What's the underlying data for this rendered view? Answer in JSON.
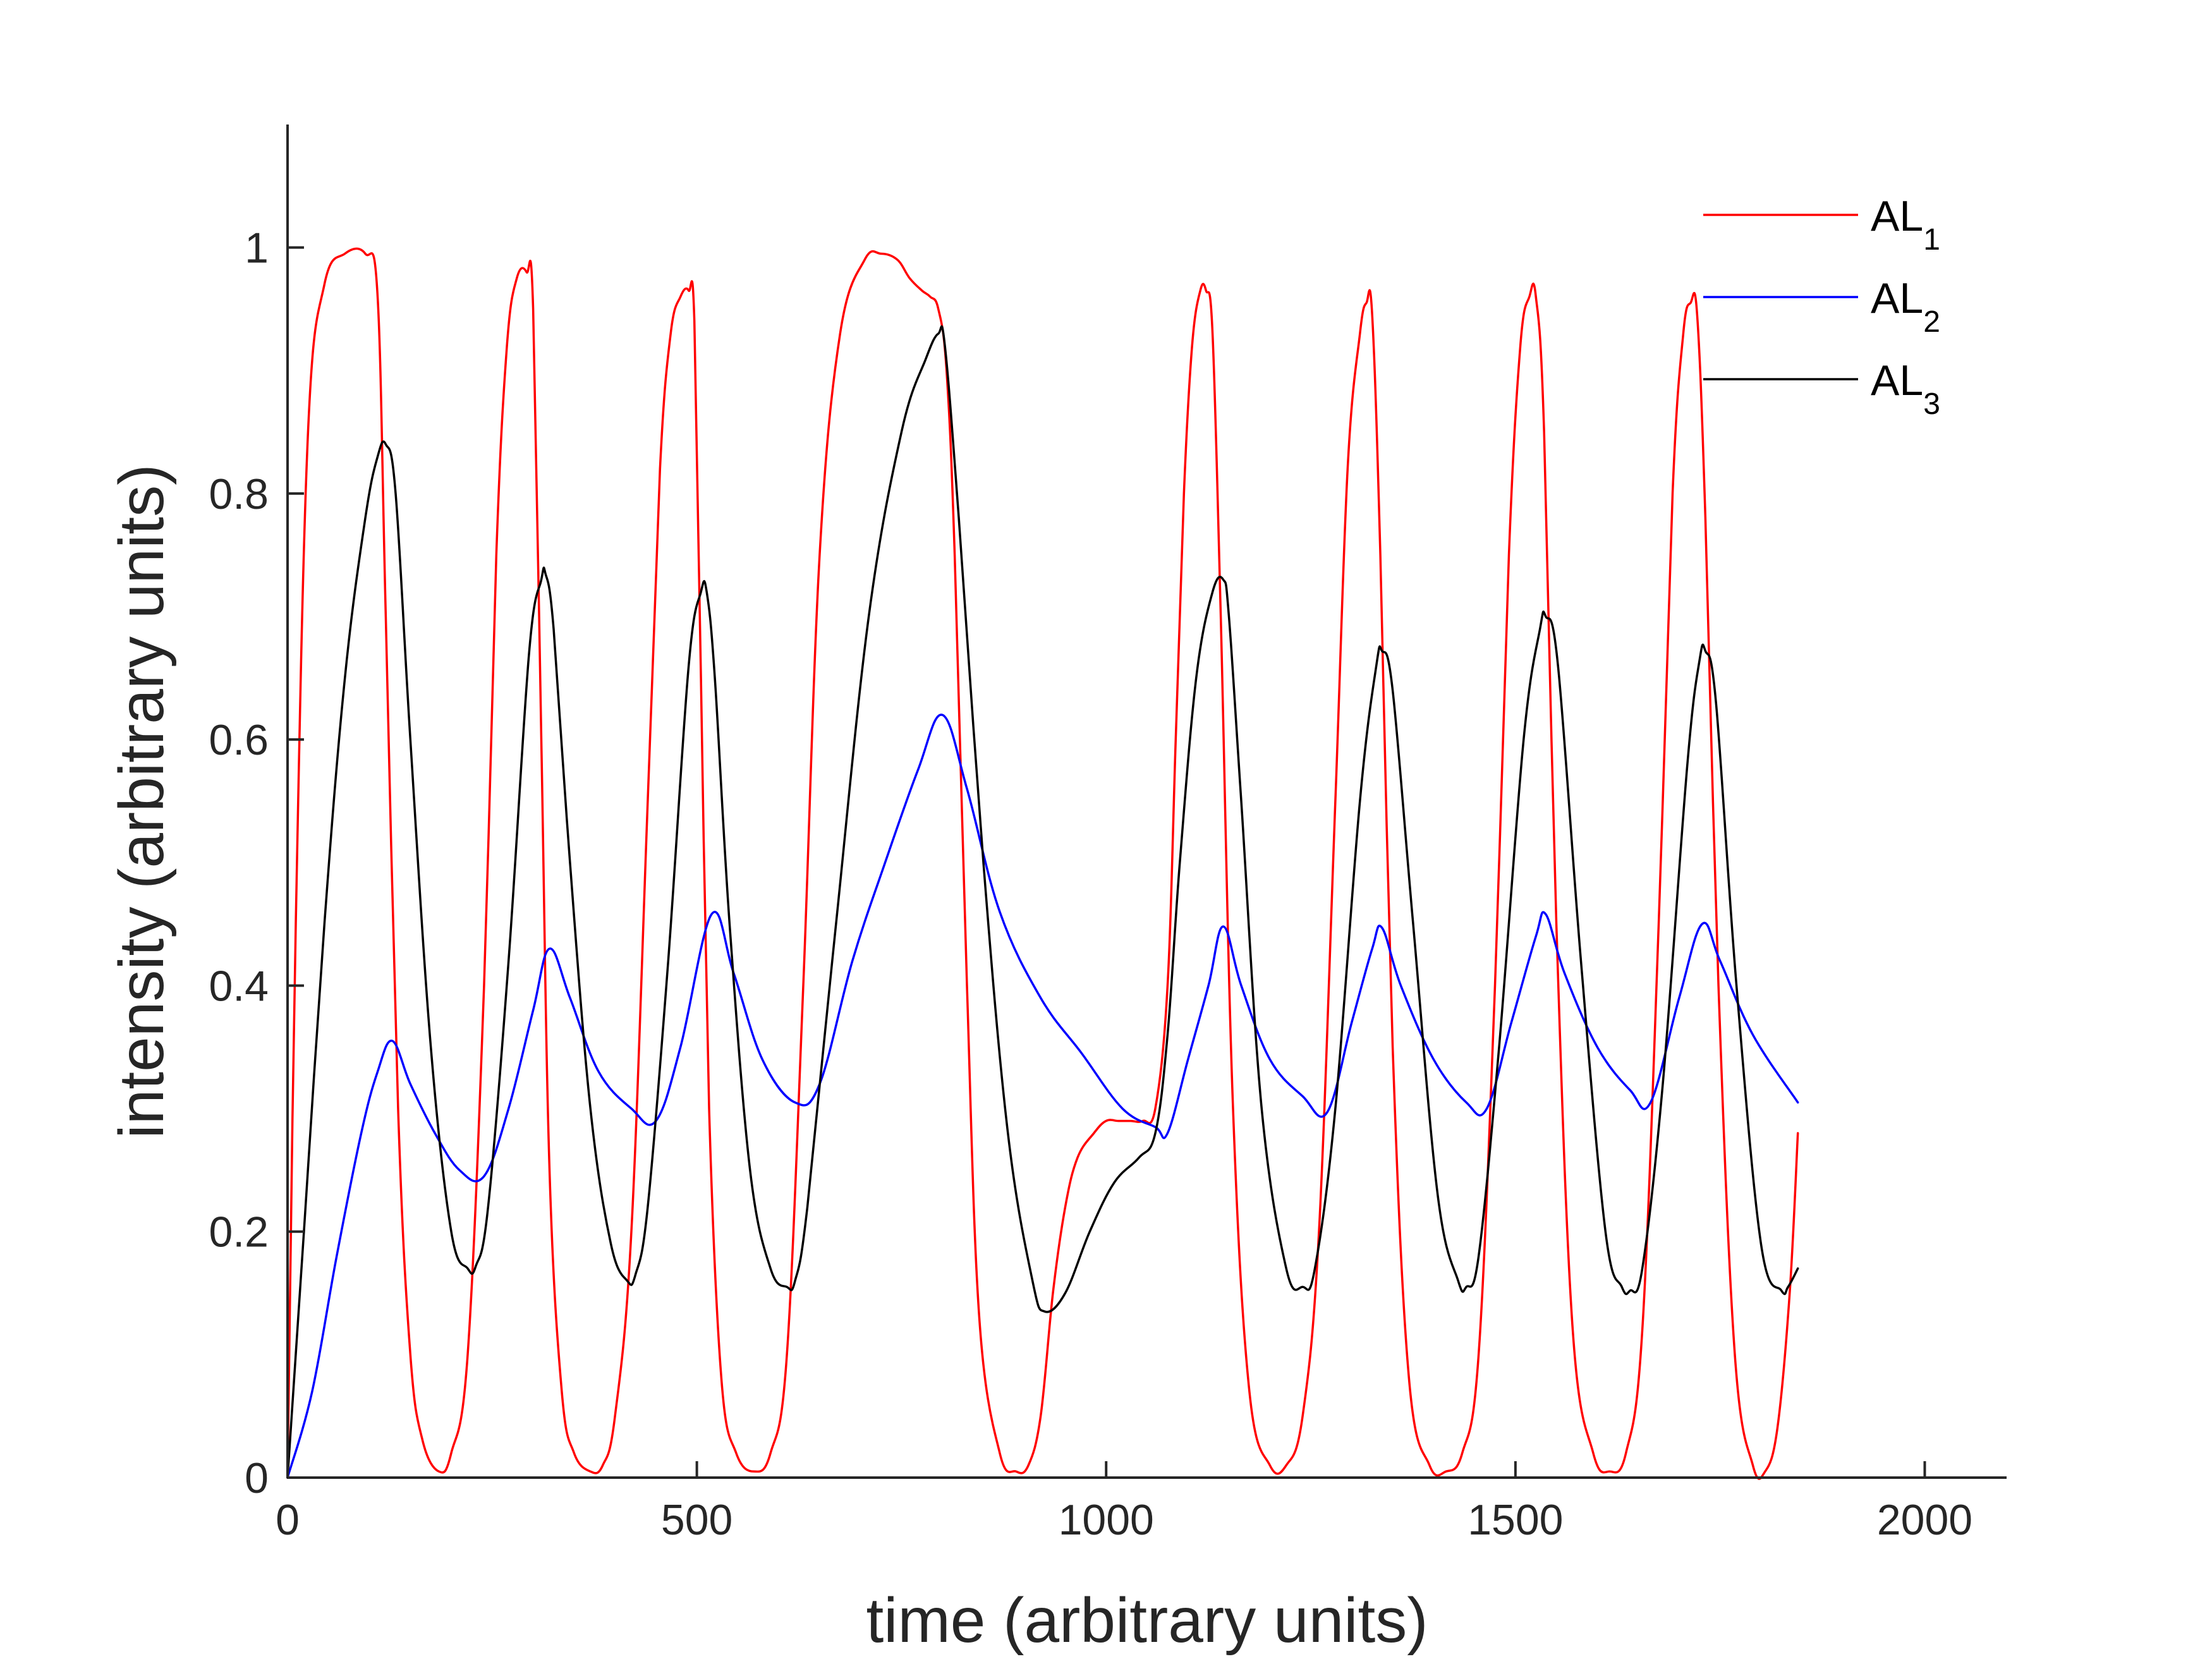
{
  "chart_data": {
    "type": "line",
    "xlabel": "time (arbitrary units)",
    "ylabel": "intensity (arbitrary units)",
    "xlim": [
      0,
      2100
    ],
    "ylim": [
      0,
      1.1
    ],
    "xticks": [
      0,
      500,
      1000,
      1500,
      2000
    ],
    "xtick_labels": [
      "0",
      "500",
      "1000",
      "1500",
      "2000"
    ],
    "yticks": [
      0,
      0.2,
      0.4,
      0.6,
      0.8,
      1
    ],
    "ytick_labels": [
      "0",
      "0.2",
      "0.4",
      "0.6",
      "0.8",
      "1"
    ],
    "grid": false,
    "legend_position": "top-right",
    "series": [
      {
        "name": "AL1",
        "label_main": "AL",
        "label_sub": "1",
        "color": "#ff0000",
        "x": [
          0,
          10,
          25,
          45,
          70,
          95,
          110,
          120,
          135,
          150,
          165,
          185,
          200,
          220,
          240,
          255,
          268,
          280,
          292,
          300,
          310,
          320,
          335,
          350,
          370,
          385,
          400,
          420,
          440,
          455,
          468,
          480,
          490,
          497,
          505,
          515,
          530,
          548,
          570,
          590,
          610,
          630,
          650,
          675,
          705,
          725,
          745,
          760,
          775,
          785,
          795,
          805,
          815,
          830,
          845,
          870,
          890,
          905,
          920,
          935,
          950,
          965,
          985,
          1000,
          1015,
          1030,
          1045,
          1060,
          1075,
          1085,
          1095,
          1105,
          1115,
          1122,
          1130,
          1140,
          1155,
          1175,
          1200,
          1220,
          1240,
          1260,
          1280,
          1295,
          1310,
          1318,
          1325,
          1335,
          1350,
          1370,
          1395,
          1415,
          1435,
          1455,
          1475,
          1492,
          1506,
          1517,
          1525,
          1535,
          1550,
          1570,
          1595,
          1615,
          1635,
          1655,
          1675,
          1692,
          1705,
          1714,
          1722,
          1732,
          1748,
          1768,
          1790,
          1805,
          1820,
          1835,
          1845
        ],
        "values": [
          0.0,
          0.45,
          0.85,
          0.97,
          0.995,
          0.995,
          0.96,
          0.7,
          0.3,
          0.1,
          0.03,
          0.005,
          0.02,
          0.1,
          0.4,
          0.75,
          0.92,
          0.975,
          0.98,
          0.95,
          0.6,
          0.25,
          0.07,
          0.02,
          0.005,
          0.01,
          0.05,
          0.2,
          0.55,
          0.82,
          0.93,
          0.96,
          0.965,
          0.94,
          0.65,
          0.3,
          0.08,
          0.02,
          0.005,
          0.02,
          0.1,
          0.4,
          0.75,
          0.93,
          0.99,
          0.995,
          0.99,
          0.975,
          0.965,
          0.96,
          0.95,
          0.9,
          0.75,
          0.4,
          0.13,
          0.02,
          0.005,
          0.01,
          0.05,
          0.15,
          0.22,
          0.26,
          0.28,
          0.29,
          0.29,
          0.29,
          0.29,
          0.3,
          0.4,
          0.6,
          0.8,
          0.92,
          0.965,
          0.965,
          0.93,
          0.7,
          0.3,
          0.07,
          0.01,
          0.01,
          0.05,
          0.2,
          0.55,
          0.82,
          0.93,
          0.955,
          0.945,
          0.75,
          0.35,
          0.08,
          0.01,
          0.005,
          0.02,
          0.1,
          0.4,
          0.75,
          0.92,
          0.96,
          0.96,
          0.85,
          0.45,
          0.12,
          0.02,
          0.005,
          0.02,
          0.12,
          0.45,
          0.8,
          0.93,
          0.955,
          0.945,
          0.78,
          0.4,
          0.1,
          0.01,
          0.005,
          0.04,
          0.15,
          0.28
        ]
      },
      {
        "name": "AL2",
        "label_main": "AL",
        "label_sub": "2",
        "color": "#0000ff",
        "x": [
          0,
          30,
          60,
          90,
          110,
          128,
          150,
          180,
          210,
          240,
          270,
          300,
          320,
          345,
          380,
          420,
          450,
          480,
          518,
          545,
          580,
          620,
          650,
          690,
          730,
          770,
          800,
          830,
          870,
          920,
          970,
          1020,
          1060,
          1075,
          1100,
          1125,
          1143,
          1165,
          1200,
          1240,
          1270,
          1300,
          1325,
          1337,
          1360,
          1400,
          1440,
          1465,
          1495,
          1525,
          1537,
          1560,
          1600,
          1640,
          1665,
          1700,
          1728,
          1750,
          1790,
          1845
        ],
        "values": [
          0.0,
          0.07,
          0.18,
          0.28,
          0.33,
          0.355,
          0.32,
          0.28,
          0.25,
          0.245,
          0.3,
          0.38,
          0.43,
          0.39,
          0.33,
          0.3,
          0.29,
          0.35,
          0.458,
          0.41,
          0.34,
          0.305,
          0.32,
          0.42,
          0.5,
          0.575,
          0.62,
          0.56,
          0.46,
          0.39,
          0.345,
          0.3,
          0.285,
          0.28,
          0.34,
          0.4,
          0.448,
          0.4,
          0.34,
          0.31,
          0.297,
          0.37,
          0.43,
          0.447,
          0.4,
          0.34,
          0.305,
          0.3,
          0.37,
          0.44,
          0.458,
          0.41,
          0.35,
          0.315,
          0.305,
          0.39,
          0.45,
          0.42,
          0.36,
          0.305
        ]
      },
      {
        "name": "AL3",
        "label_main": "AL",
        "label_sub": "3",
        "color": "#000000",
        "x": [
          0,
          20,
          45,
          70,
          95,
          110,
          120,
          132,
          150,
          175,
          200,
          220,
          230,
          245,
          270,
          295,
          310,
          315,
          325,
          345,
          370,
          395,
          415,
          425,
          440,
          465,
          490,
          505,
          512,
          522,
          540,
          565,
          590,
          610,
          620,
          635,
          670,
          710,
          750,
          780,
          795,
          803,
          820,
          850,
          880,
          910,
          925,
          950,
          980,
          1010,
          1040,
          1060,
          1075,
          1090,
          1110,
          1130,
          1143,
          1150,
          1165,
          1190,
          1220,
          1240,
          1255,
          1280,
          1310,
          1330,
          1337,
          1350,
          1375,
          1405,
          1430,
          1440,
          1455,
          1480,
          1510,
          1530,
          1537,
          1552,
          1580,
          1610,
          1630,
          1640,
          1655,
          1680,
          1710,
          1725,
          1732,
          1745,
          1770,
          1800,
          1825,
          1833,
          1845
        ],
        "values": [
          0.0,
          0.2,
          0.45,
          0.65,
          0.78,
          0.83,
          0.84,
          0.8,
          0.6,
          0.35,
          0.2,
          0.17,
          0.172,
          0.22,
          0.42,
          0.67,
          0.73,
          0.735,
          0.69,
          0.5,
          0.3,
          0.19,
          0.16,
          0.165,
          0.22,
          0.42,
          0.66,
          0.72,
          0.72,
          0.65,
          0.45,
          0.25,
          0.17,
          0.155,
          0.16,
          0.22,
          0.45,
          0.7,
          0.85,
          0.91,
          0.93,
          0.92,
          0.78,
          0.5,
          0.28,
          0.16,
          0.135,
          0.15,
          0.2,
          0.24,
          0.26,
          0.28,
          0.36,
          0.5,
          0.65,
          0.72,
          0.73,
          0.7,
          0.55,
          0.3,
          0.17,
          0.155,
          0.17,
          0.3,
          0.55,
          0.66,
          0.672,
          0.64,
          0.45,
          0.23,
          0.16,
          0.155,
          0.18,
          0.35,
          0.6,
          0.69,
          0.7,
          0.66,
          0.42,
          0.2,
          0.155,
          0.152,
          0.17,
          0.32,
          0.58,
          0.665,
          0.672,
          0.63,
          0.4,
          0.19,
          0.152,
          0.155,
          0.17
        ]
      }
    ]
  }
}
